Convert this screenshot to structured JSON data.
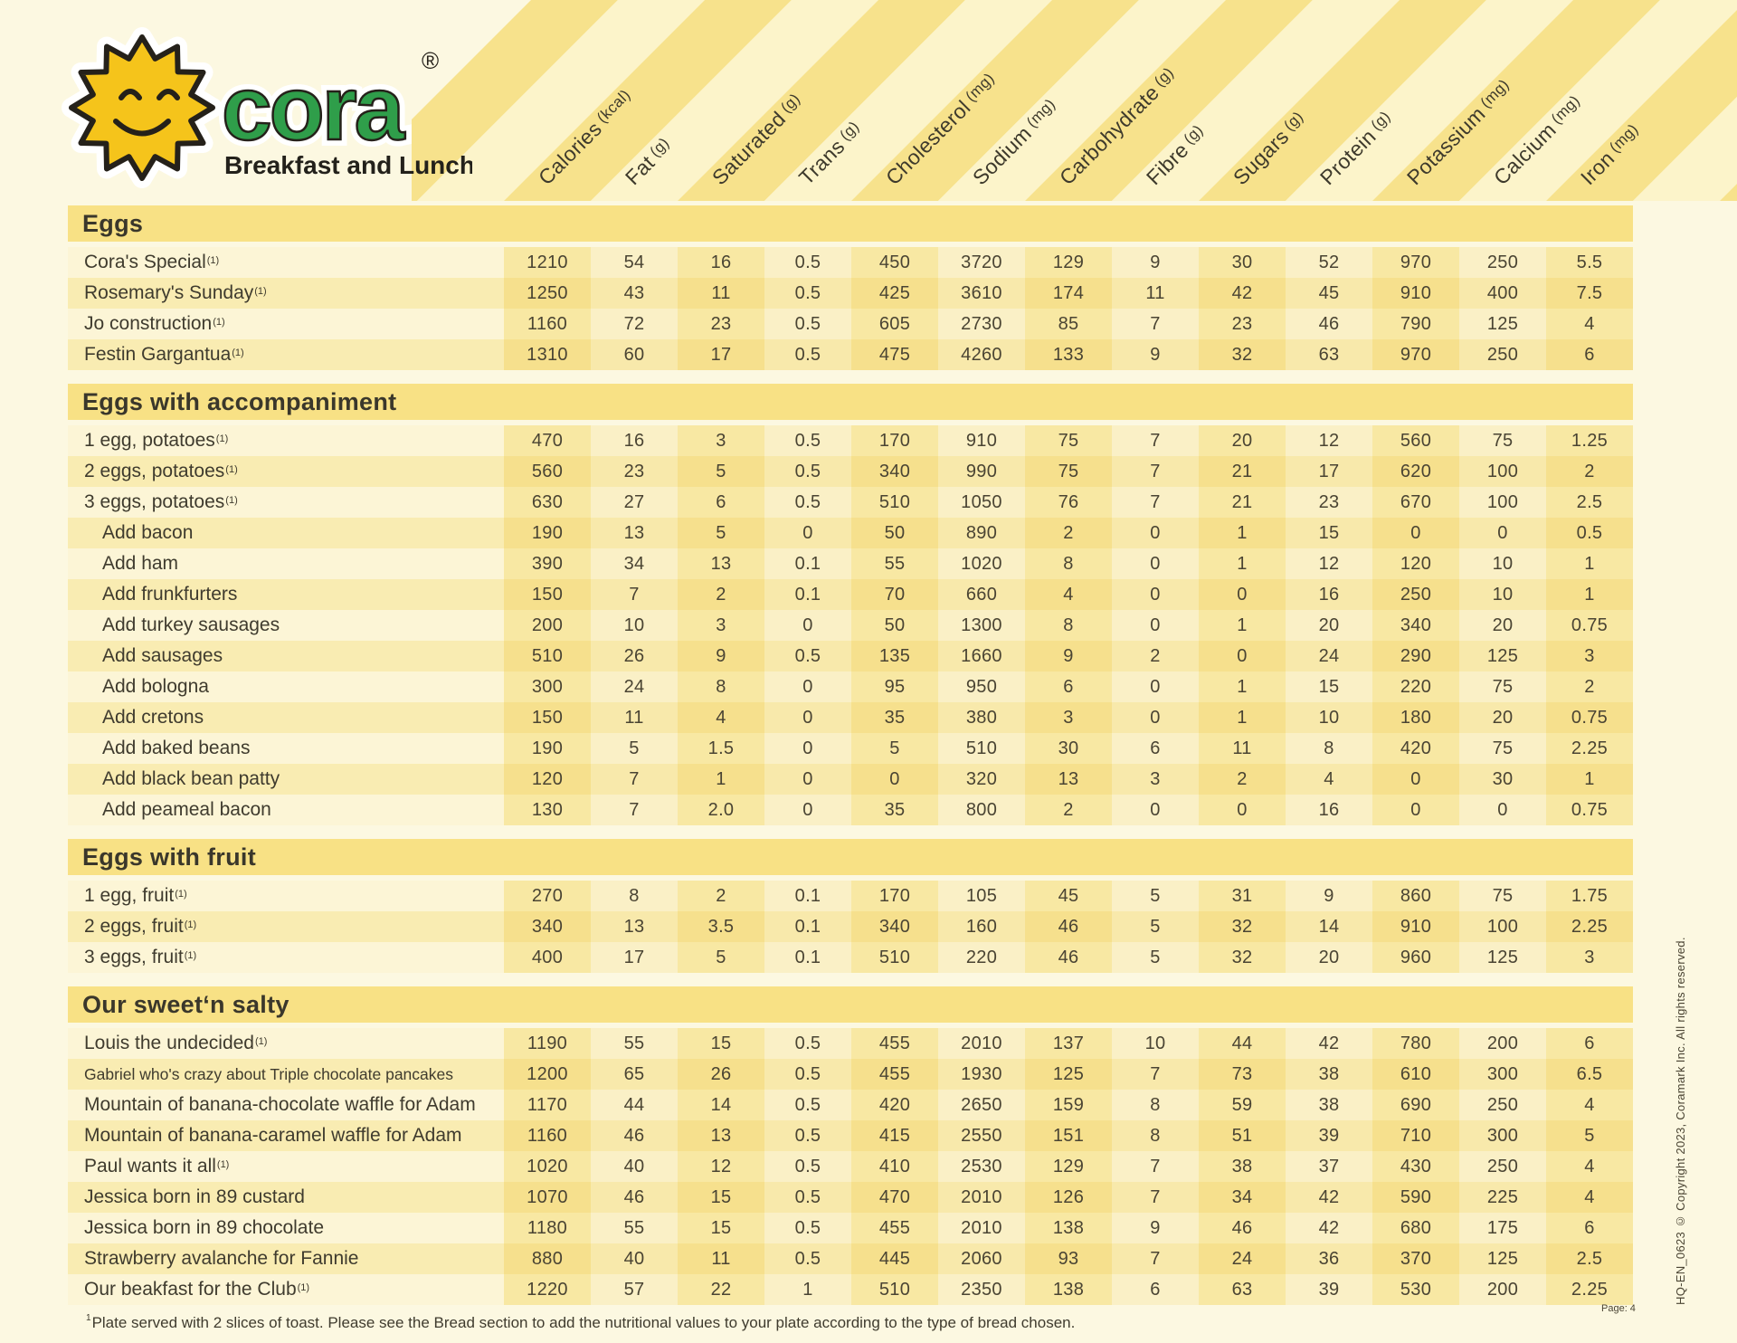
{
  "brand": {
    "wordmark": "cora",
    "registered": "®",
    "tagline": "Breakfast and Lunch"
  },
  "columns": [
    {
      "label": "Calories",
      "unit": "(kcal)"
    },
    {
      "label": "Fat",
      "unit": "(g)"
    },
    {
      "label": "Saturated",
      "unit": "(g)"
    },
    {
      "label": "Trans",
      "unit": "(g)"
    },
    {
      "label": "Cholesterol",
      "unit": "(mg)"
    },
    {
      "label": "Sodium",
      "unit": "(mg)"
    },
    {
      "label": "Carbohydrate",
      "unit": "(g)"
    },
    {
      "label": "Fibre",
      "unit": "(g)"
    },
    {
      "label": "Sugars",
      "unit": "(g)"
    },
    {
      "label": "Protein",
      "unit": "(g)"
    },
    {
      "label": "Potassium",
      "unit": "(mg)"
    },
    {
      "label": "Calcium",
      "unit": "(mg)"
    },
    {
      "label": "Iron",
      "unit": "(mg)"
    }
  ],
  "sections": [
    {
      "title": "Eggs",
      "rows": [
        {
          "name": "Cora's Special",
          "marker": "(1)",
          "values": [
            "1210",
            "54",
            "16",
            "0.5",
            "450",
            "3720",
            "129",
            "9",
            "30",
            "52",
            "970",
            "250",
            "5.5"
          ]
        },
        {
          "name": "Rosemary's Sunday",
          "marker": "(1)",
          "values": [
            "1250",
            "43",
            "11",
            "0.5",
            "425",
            "3610",
            "174",
            "11",
            "42",
            "45",
            "910",
            "400",
            "7.5"
          ]
        },
        {
          "name": "Jo construction",
          "marker": "(1)",
          "values": [
            "1160",
            "72",
            "23",
            "0.5",
            "605",
            "2730",
            "85",
            "7",
            "23",
            "46",
            "790",
            "125",
            "4"
          ]
        },
        {
          "name": "Festin Gargantua",
          "marker": "(1)",
          "values": [
            "1310",
            "60",
            "17",
            "0.5",
            "475",
            "4260",
            "133",
            "9",
            "32",
            "63",
            "970",
            "250",
            "6"
          ]
        }
      ]
    },
    {
      "title": "Eggs with accompaniment",
      "rows": [
        {
          "name": "1 egg, potatoes",
          "marker": "(1)",
          "values": [
            "470",
            "16",
            "3",
            "0.5",
            "170",
            "910",
            "75",
            "7",
            "20",
            "12",
            "560",
            "75",
            "1.25"
          ]
        },
        {
          "name": "2 eggs, potatoes",
          "marker": "(1)",
          "values": [
            "560",
            "23",
            "5",
            "0.5",
            "340",
            "990",
            "75",
            "7",
            "21",
            "17",
            "620",
            "100",
            "2"
          ]
        },
        {
          "name": "3 eggs, potatoes",
          "marker": "(1)",
          "values": [
            "630",
            "27",
            "6",
            "0.5",
            "510",
            "1050",
            "76",
            "7",
            "21",
            "23",
            "670",
            "100",
            "2.5"
          ]
        },
        {
          "name": "Add bacon",
          "indent": true,
          "values": [
            "190",
            "13",
            "5",
            "0",
            "50",
            "890",
            "2",
            "0",
            "1",
            "15",
            "0",
            "0",
            "0.5"
          ]
        },
        {
          "name": "Add ham",
          "indent": true,
          "values": [
            "390",
            "34",
            "13",
            "0.1",
            "55",
            "1020",
            "8",
            "0",
            "1",
            "12",
            "120",
            "10",
            "1"
          ]
        },
        {
          "name": "Add frunkfurters",
          "indent": true,
          "values": [
            "150",
            "7",
            "2",
            "0.1",
            "70",
            "660",
            "4",
            "0",
            "0",
            "16",
            "250",
            "10",
            "1"
          ]
        },
        {
          "name": "Add turkey sausages",
          "indent": true,
          "values": [
            "200",
            "10",
            "3",
            "0",
            "50",
            "1300",
            "8",
            "0",
            "1",
            "20",
            "340",
            "20",
            "0.75"
          ]
        },
        {
          "name": "Add sausages",
          "indent": true,
          "values": [
            "510",
            "26",
            "9",
            "0.5",
            "135",
            "1660",
            "9",
            "2",
            "0",
            "24",
            "290",
            "125",
            "3"
          ]
        },
        {
          "name": "Add bologna",
          "indent": true,
          "values": [
            "300",
            "24",
            "8",
            "0",
            "95",
            "950",
            "6",
            "0",
            "1",
            "15",
            "220",
            "75",
            "2"
          ]
        },
        {
          "name": "Add cretons",
          "indent": true,
          "values": [
            "150",
            "11",
            "4",
            "0",
            "35",
            "380",
            "3",
            "0",
            "1",
            "10",
            "180",
            "20",
            "0.75"
          ]
        },
        {
          "name": "Add baked beans",
          "indent": true,
          "values": [
            "190",
            "5",
            "1.5",
            "0",
            "5",
            "510",
            "30",
            "6",
            "11",
            "8",
            "420",
            "75",
            "2.25"
          ]
        },
        {
          "name": "Add black bean patty",
          "indent": true,
          "values": [
            "120",
            "7",
            "1",
            "0",
            "0",
            "320",
            "13",
            "3",
            "2",
            "4",
            "0",
            "30",
            "1"
          ]
        },
        {
          "name": "Add peameal bacon",
          "indent": true,
          "values": [
            "130",
            "7",
            "2.0",
            "0",
            "35",
            "800",
            "2",
            "0",
            "0",
            "16",
            "0",
            "0",
            "0.75"
          ]
        }
      ]
    },
    {
      "title": "Eggs with fruit",
      "rows": [
        {
          "name": "1 egg, fruit",
          "marker": "(1)",
          "values": [
            "270",
            "8",
            "2",
            "0.1",
            "170",
            "105",
            "45",
            "5",
            "31",
            "9",
            "860",
            "75",
            "1.75"
          ]
        },
        {
          "name": "2 eggs, fruit",
          "marker": "(1)",
          "values": [
            "340",
            "13",
            "3.5",
            "0.1",
            "340",
            "160",
            "46",
            "5",
            "32",
            "14",
            "910",
            "100",
            "2.25"
          ]
        },
        {
          "name": "3 eggs, fruit",
          "marker": "(1)",
          "values": [
            "400",
            "17",
            "5",
            "0.1",
            "510",
            "220",
            "46",
            "5",
            "32",
            "20",
            "960",
            "125",
            "3"
          ]
        }
      ]
    },
    {
      "title": "Our sweet‘n salty",
      "rows": [
        {
          "name": "Louis the undecided",
          "marker": "(1)",
          "values": [
            "1190",
            "55",
            "15",
            "0.5",
            "455",
            "2010",
            "137",
            "10",
            "44",
            "42",
            "780",
            "200",
            "6"
          ]
        },
        {
          "name": "Gabriel who's crazy about Triple chocolate pancakes",
          "small": true,
          "values": [
            "1200",
            "65",
            "26",
            "0.5",
            "455",
            "1930",
            "125",
            "7",
            "73",
            "38",
            "610",
            "300",
            "6.5"
          ]
        },
        {
          "name": "Mountain of banana-chocolate waffle for Adam",
          "values": [
            "1170",
            "44",
            "14",
            "0.5",
            "420",
            "2650",
            "159",
            "8",
            "59",
            "38",
            "690",
            "250",
            "4"
          ]
        },
        {
          "name": "Mountain of banana-caramel waffle for Adam",
          "values": [
            "1160",
            "46",
            "13",
            "0.5",
            "415",
            "2550",
            "151",
            "8",
            "51",
            "39",
            "710",
            "300",
            "5"
          ]
        },
        {
          "name": "Paul wants it all",
          "marker": "(1)",
          "values": [
            "1020",
            "40",
            "12",
            "0.5",
            "410",
            "2530",
            "129",
            "7",
            "38",
            "37",
            "430",
            "250",
            "4"
          ]
        },
        {
          "name": "Jessica born in 89 custard",
          "values": [
            "1070",
            "46",
            "15",
            "0.5",
            "470",
            "2010",
            "126",
            "7",
            "34",
            "42",
            "590",
            "225",
            "4"
          ]
        },
        {
          "name": "Jessica born in 89 chocolate",
          "values": [
            "1180",
            "55",
            "15",
            "0.5",
            "455",
            "2010",
            "138",
            "9",
            "46",
            "42",
            "680",
            "175",
            "6"
          ]
        },
        {
          "name": "Strawberry avalanche for Fannie",
          "values": [
            "880",
            "40",
            "11",
            "0.5",
            "445",
            "2060",
            "93",
            "7",
            "24",
            "36",
            "370",
            "125",
            "2.5"
          ]
        },
        {
          "name": "Our beakfast for the Club",
          "marker": "(1)",
          "values": [
            "1220",
            "57",
            "22",
            "1",
            "510",
            "2350",
            "138",
            "6",
            "63",
            "39",
            "530",
            "200",
            "2.25"
          ]
        }
      ]
    }
  ],
  "footer": {
    "note_sup": "1",
    "note": "Plate served with 2 slices of toast. Please see the Bread section to add the nutritional values to your plate according to the type of bread chosen.",
    "page": "Page: 4",
    "copyright": "HQ-EN_0623 © Copyright 2023, Coramark Inc. All rights reserved."
  },
  "colors": {
    "background": "#FCF8E1",
    "stripe_dark": "#F7E28C",
    "stripe_light": "#FCF4CA",
    "section_band": "#F8E185",
    "brand_green": "#2F9E4A",
    "sun_yellow": "#F5C41B",
    "text": "#3F3B2E"
  }
}
